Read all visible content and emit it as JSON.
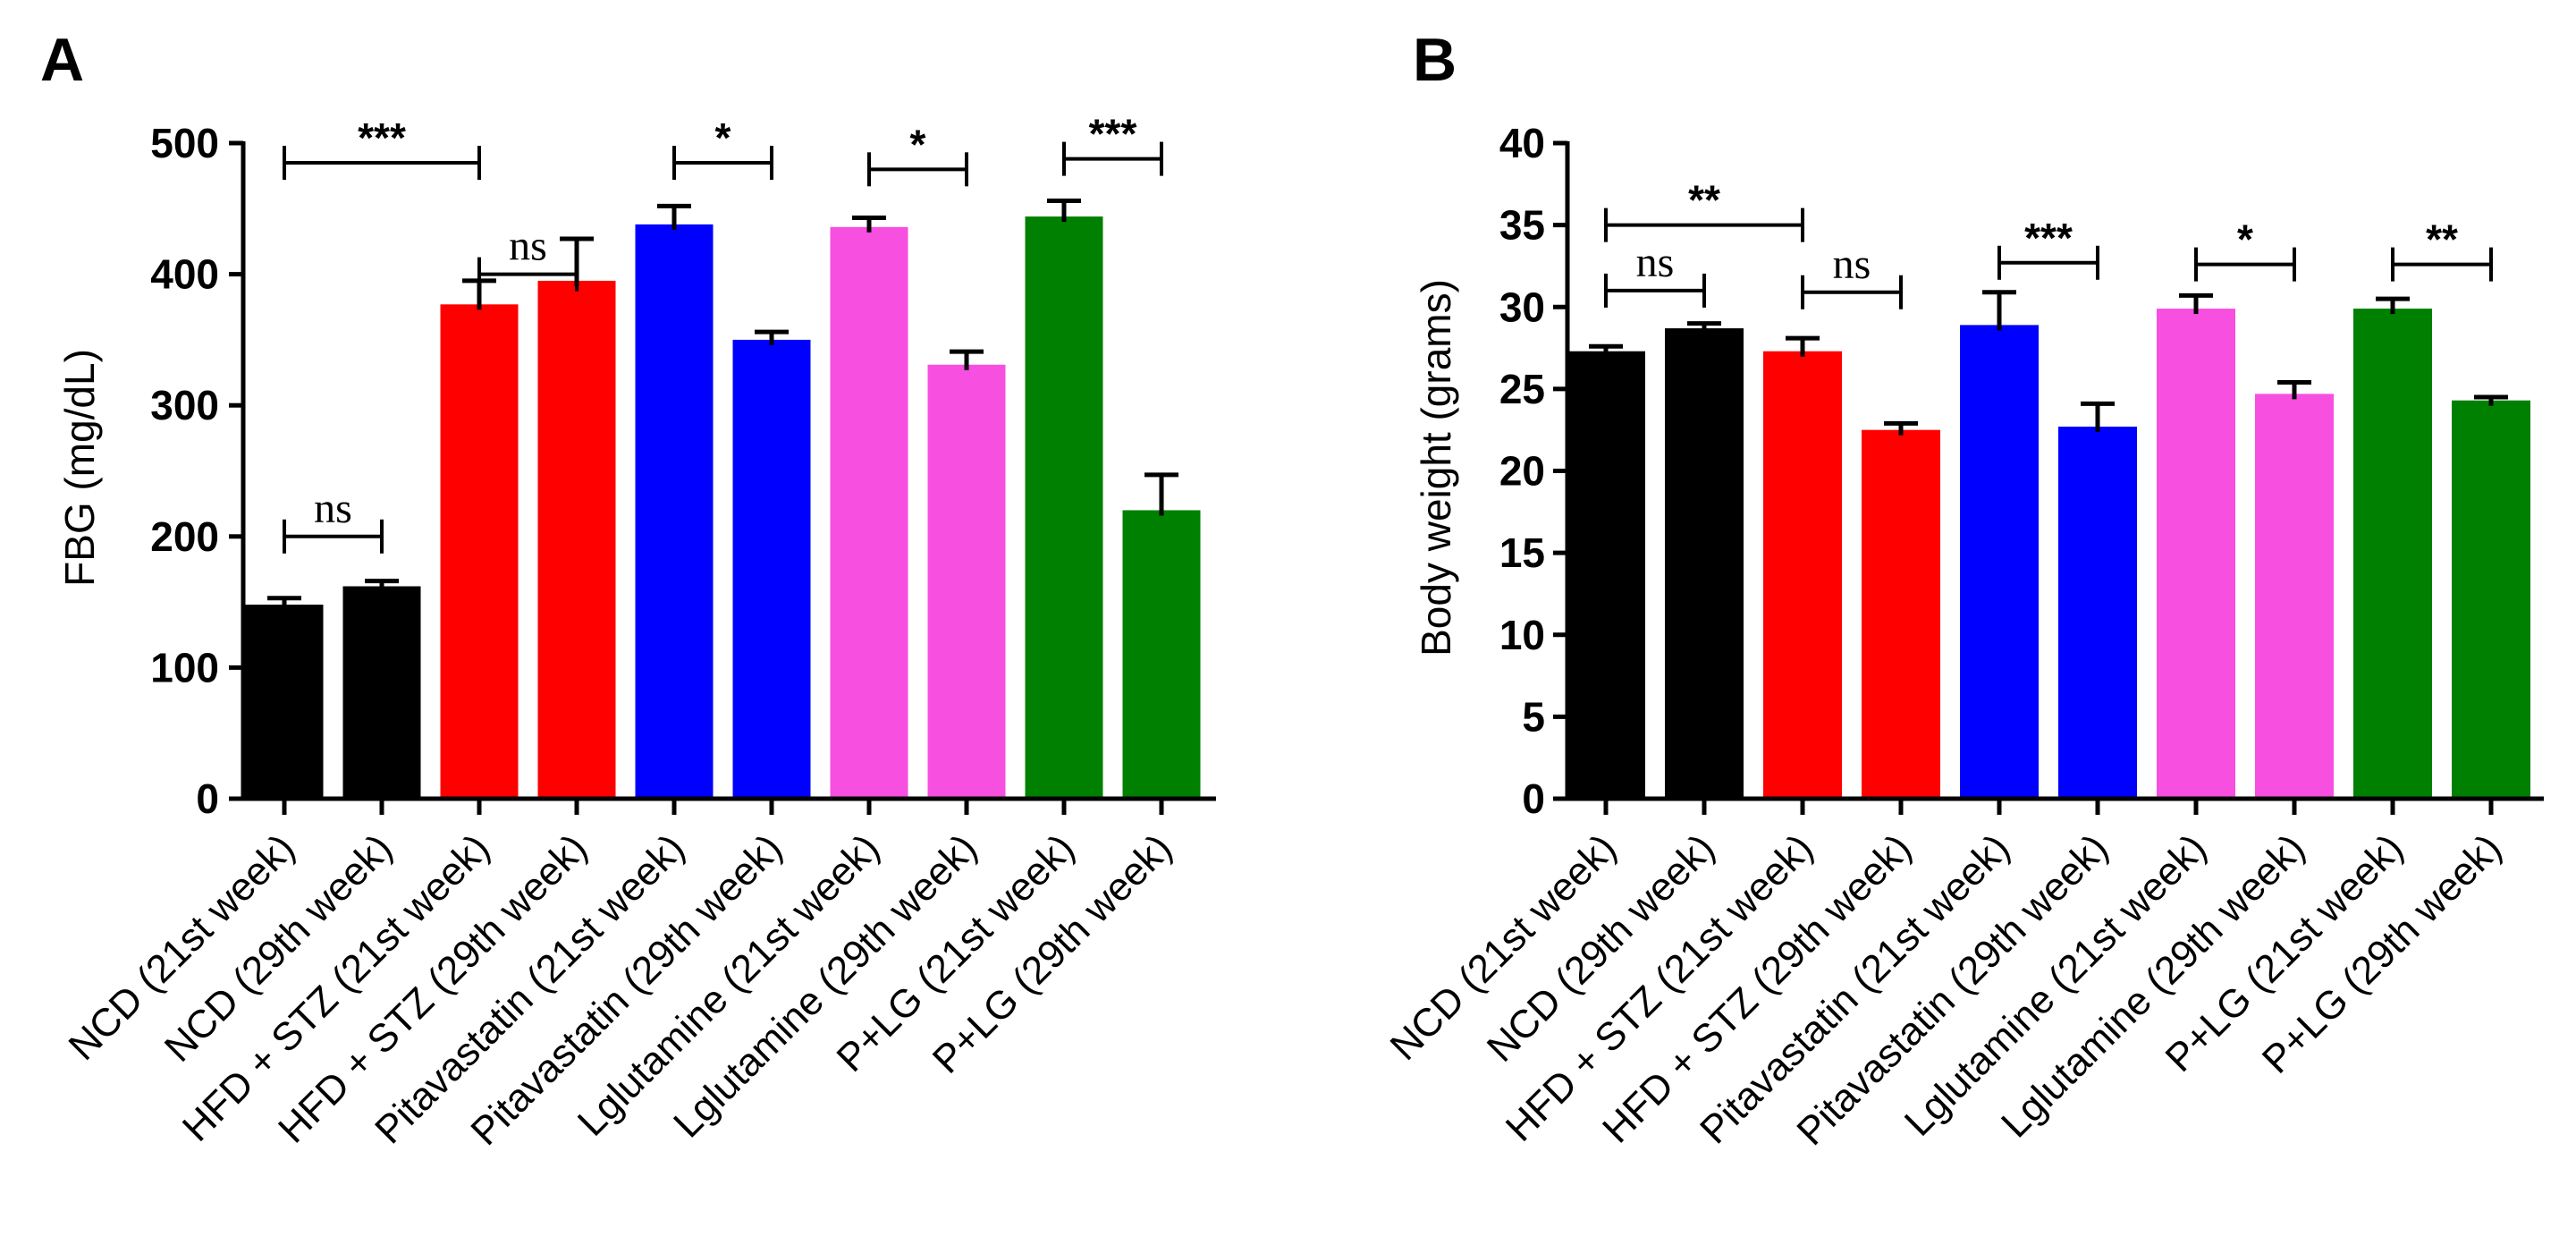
{
  "figure": {
    "panels": [
      "A",
      "B"
    ]
  },
  "chart_data": [
    {
      "panel": "A",
      "type": "bar",
      "title": "",
      "xlabel": "",
      "ylabel": "FBG (mg/dL)",
      "ylim": [
        0,
        500
      ],
      "yticks": [
        0,
        100,
        200,
        300,
        400,
        500
      ],
      "categories": [
        "NCD (21st week)",
        "NCD (29th week)",
        "HFD + STZ (21st week)",
        "HFD + STZ (29th week)",
        "Pitavastatin (21st week)",
        "Pitavastatin (29th week)",
        "Lglutamine (21st week)",
        "Lglutamine (29th week)",
        "P+LG (21st week)",
        "P+LG (29th week)"
      ],
      "values": [
        148,
        162,
        377,
        395,
        438,
        350,
        436,
        331,
        444,
        220
      ],
      "errors": [
        5,
        4,
        18,
        32,
        14,
        6,
        7,
        10,
        12,
        27
      ],
      "colors": [
        "#000000",
        "#000000",
        "#ff0000",
        "#ff0000",
        "#0000ff",
        "#0000ff",
        "#f74fe0",
        "#f74fe0",
        "#008000",
        "#008000"
      ],
      "significance": [
        {
          "from": 0,
          "to": 1,
          "label": "ns",
          "y": 200
        },
        {
          "from": 0,
          "to": 2,
          "label": "***",
          "y": 485
        },
        {
          "from": 2,
          "to": 3,
          "label": "ns",
          "y": 400
        },
        {
          "from": 4,
          "to": 5,
          "label": "*",
          "y": 485
        },
        {
          "from": 6,
          "to": 7,
          "label": "*",
          "y": 480
        },
        {
          "from": 8,
          "to": 9,
          "label": "***",
          "y": 488
        }
      ]
    },
    {
      "panel": "B",
      "type": "bar",
      "title": "",
      "xlabel": "",
      "ylabel": "Body weight (grams)",
      "ylim": [
        0,
        40
      ],
      "yticks": [
        0,
        5,
        10,
        15,
        20,
        25,
        30,
        35,
        40
      ],
      "categories": [
        "NCD (21st week)",
        "NCD (29th week)",
        "HFD + STZ (21st week)",
        "HFD + STZ (29th week)",
        "Pitavastatin (21st week)",
        "Pitavastatin (29th week)",
        "Lglutamine (21st week)",
        "Lglutamine (29th week)",
        "P+LG (21st week)",
        "P+LG (29th week)"
      ],
      "values": [
        27.3,
        28.7,
        27.3,
        22.5,
        28.9,
        22.7,
        29.9,
        24.7,
        29.9,
        24.3
      ],
      "errors": [
        0.3,
        0.3,
        0.8,
        0.4,
        2.0,
        1.4,
        0.8,
        0.7,
        0.6,
        0.2
      ],
      "colors": [
        "#000000",
        "#000000",
        "#ff0000",
        "#ff0000",
        "#0000ff",
        "#0000ff",
        "#f74fe0",
        "#f74fe0",
        "#008000",
        "#008000"
      ],
      "significance": [
        {
          "from": 0,
          "to": 2,
          "label": "**",
          "y": 35
        },
        {
          "from": 0,
          "to": 1,
          "label": "ns",
          "y": 31
        },
        {
          "from": 2,
          "to": 3,
          "label": "ns",
          "y": 30.9
        },
        {
          "from": 4,
          "to": 5,
          "label": "***",
          "y": 32.7
        },
        {
          "from": 6,
          "to": 7,
          "label": "*",
          "y": 32.6
        },
        {
          "from": 8,
          "to": 9,
          "label": "**",
          "y": 32.6
        }
      ]
    }
  ]
}
